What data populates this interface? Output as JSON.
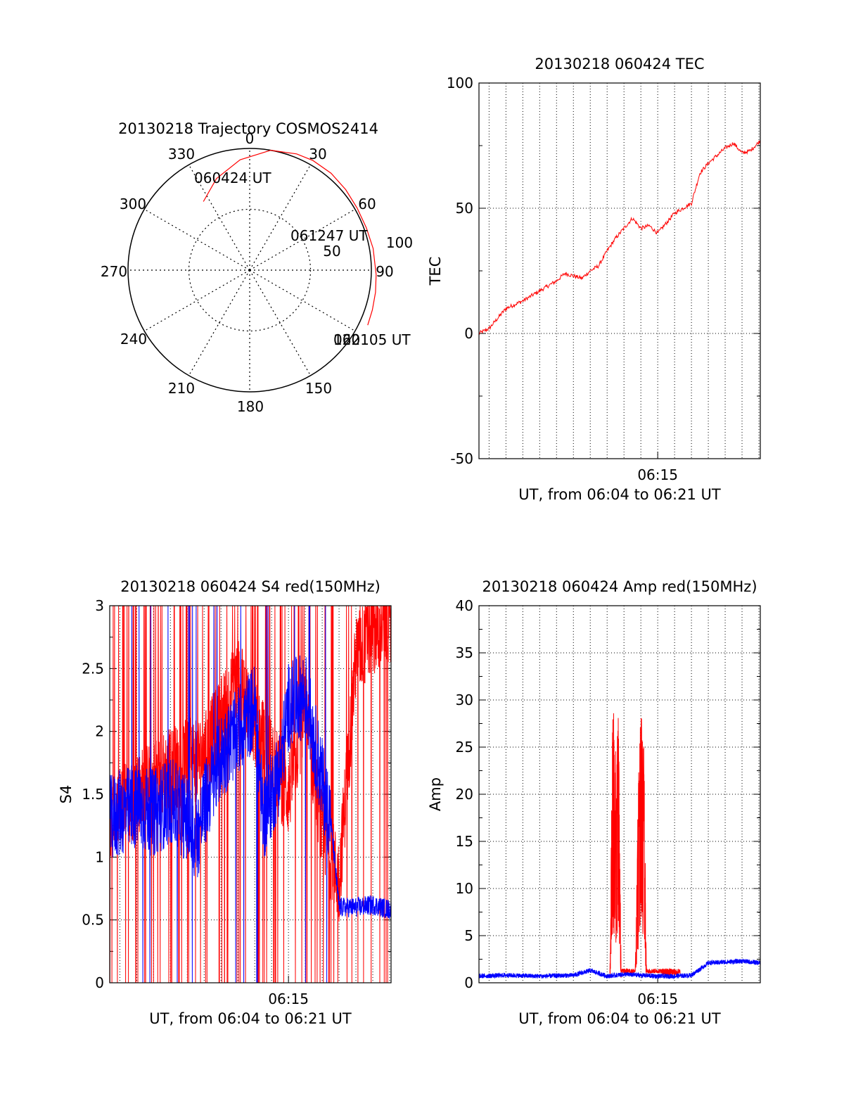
{
  "colors": {
    "red": "#ff0000",
    "blue": "#0000ff",
    "axis": "#000000",
    "grid": "#000000"
  },
  "chart_data": [
    {
      "id": "trajectory",
      "type": "scatter",
      "subtype": "polar",
      "title": "20130218 Trajectory COSMOS2414",
      "angle_labels": [
        "0",
        "30",
        "60",
        "90",
        "150",
        "180",
        "210",
        "240",
        "270",
        "300",
        "330"
      ],
      "radial_labels": [
        "50",
        "100"
      ],
      "track_deg": [
        [
          -34,
          68
        ],
        [
          -20,
          80
        ],
        [
          -5,
          91
        ],
        [
          10,
          100
        ],
        [
          22,
          103
        ],
        [
          30,
          104
        ],
        [
          40,
          104
        ],
        [
          50,
          103
        ],
        [
          60,
          102
        ],
        [
          70,
          102
        ],
        [
          80,
          103
        ],
        [
          92,
          104
        ],
        [
          100,
          105
        ],
        [
          108,
          106
        ],
        [
          115,
          107
        ]
      ],
      "annotations": [
        {
          "text": "060424 UT",
          "angle": -34,
          "r": 68
        },
        {
          "text": "061247 UT",
          "angle": 58,
          "r": 72
        },
        {
          "text": "062105 UT",
          "angle": 112,
          "r": 105
        },
        {
          "text": "120",
          "angle": 120,
          "r": 105
        }
      ]
    },
    {
      "id": "tec",
      "type": "line",
      "title": "20130218 060424 TEC",
      "ylabel": "TEC",
      "xlabel": "UT, from 06:04 to 06:21 UT",
      "xlim": [
        "06:04:24",
        "06:21:05"
      ],
      "ylim": [
        -50,
        100
      ],
      "yticks": [
        "-50",
        "0",
        "50",
        "100"
      ],
      "xticks": [
        {
          "time": "06:15:00",
          "label": "06:15"
        }
      ],
      "grid": true,
      "series": [
        {
          "color": "red",
          "x": [
            "06:04:24",
            "06:05:00",
            "06:05:30",
            "06:06:00",
            "06:07:00",
            "06:07:30",
            "06:08:30",
            "06:09:00",
            "06:09:30",
            "06:10:30",
            "06:11:00",
            "06:11:30",
            "06:12:00",
            "06:12:30",
            "06:13:00",
            "06:13:30",
            "06:14:00",
            "06:14:30",
            "06:15:00",
            "06:15:30",
            "06:16:00",
            "06:17:00",
            "06:17:30",
            "06:18:00",
            "06:19:00",
            "06:19:30",
            "06:20:00",
            "06:20:30",
            "06:21:05"
          ],
          "y": [
            0,
            2,
            6,
            10,
            13,
            15,
            19,
            21,
            24,
            22,
            25,
            27,
            33,
            38,
            42,
            46,
            42,
            43,
            40,
            44,
            48,
            52,
            64,
            68,
            74,
            76,
            72,
            73,
            77
          ]
        }
      ]
    },
    {
      "id": "s4",
      "type": "line",
      "title": "20130218 060424 S4 red(150MHz)",
      "ylabel": "S4",
      "xlabel": "UT, from 06:04 to 06:21 UT",
      "xlim": [
        "06:04:24",
        "06:21:05"
      ],
      "ylim": [
        0,
        3
      ],
      "yticks": [
        "0",
        "0.5",
        "1",
        "1.5",
        "2",
        "2.5",
        "3"
      ],
      "xticks": [
        {
          "time": "06:15:00",
          "label": "06:15"
        }
      ],
      "grid": true,
      "series": [
        {
          "color": "red",
          "x": [
            "06:04:24",
            "06:06:00",
            "06:08:00",
            "06:10:00",
            "06:12:00",
            "06:13:30",
            "06:15:00",
            "06:16:00",
            "06:17:00",
            "06:18:00",
            "06:19:00",
            "06:20:00",
            "06:21:05"
          ],
          "y": [
            1.3,
            1.5,
            1.7,
            1.8,
            2.4,
            1.9,
            1.5,
            2.2,
            1.2,
            0.8,
            2.6,
            2.8,
            2.9
          ]
        },
        {
          "color": "blue",
          "x": [
            "06:04:24",
            "06:05:00",
            "06:06:00",
            "06:07:00",
            "06:08:00",
            "06:09:00",
            "06:09:30",
            "06:10:00",
            "06:11:00",
            "06:12:00",
            "06:13:00",
            "06:13:30",
            "06:14:30",
            "06:15:00",
            "06:16:00",
            "06:17:00",
            "06:17:30",
            "06:18:00",
            "06:19:00",
            "06:20:00",
            "06:21:05"
          ],
          "y": [
            1.3,
            1.35,
            1.4,
            1.35,
            1.45,
            1.3,
            1.1,
            1.4,
            1.8,
            2.0,
            2.2,
            1.3,
            1.7,
            2.2,
            2.3,
            1.6,
            1.3,
            0.6,
            0.6,
            0.62,
            0.58
          ]
        }
      ]
    },
    {
      "id": "amp",
      "type": "line",
      "title": "20130218 060424 Amp red(150MHz)",
      "ylabel": "Amp",
      "xlabel": "UT, from 06:04 to 06:21 UT",
      "xlim": [
        "06:04:24",
        "06:21:05"
      ],
      "ylim": [
        0,
        40
      ],
      "yticks": [
        "0",
        "5",
        "10",
        "15",
        "20",
        "25",
        "30",
        "35",
        "40"
      ],
      "xticks": [
        {
          "time": "06:15:00",
          "label": "06:15"
        }
      ],
      "grid": true,
      "series": [
        {
          "color": "red",
          "x": [
            "06:12:10",
            "06:12:20",
            "06:12:30",
            "06:12:40",
            "06:12:50",
            "06:13:40",
            "06:13:50",
            "06:14:00",
            "06:14:10",
            "06:14:20",
            "06:15:00",
            "06:16:00"
          ],
          "y": [
            1,
            32,
            25,
            30,
            1,
            1,
            20,
            31,
            28,
            1,
            1,
            1
          ]
        },
        {
          "color": "blue",
          "x": [
            "06:04:24",
            "06:06:00",
            "06:08:00",
            "06:10:00",
            "06:11:00",
            "06:12:00",
            "06:13:00",
            "06:14:00",
            "06:15:00",
            "06:16:00",
            "06:17:00",
            "06:18:00",
            "06:19:00",
            "06:20:00",
            "06:21:05"
          ],
          "y": [
            0.6,
            0.7,
            0.6,
            0.7,
            1.2,
            0.6,
            0.8,
            0.7,
            0.6,
            0.6,
            0.7,
            2.0,
            2.1,
            2.2,
            2.0
          ]
        }
      ]
    }
  ]
}
